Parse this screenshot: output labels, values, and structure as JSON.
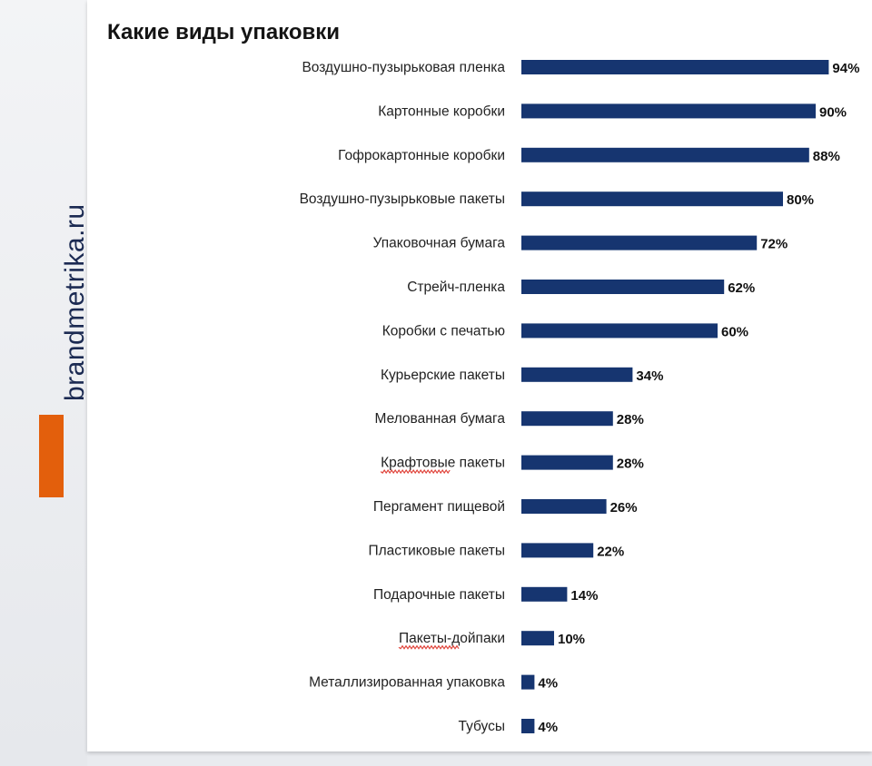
{
  "brand": {
    "text": "brandmetrika.ru",
    "accent_color": "#e35f0c"
  },
  "chart_data": {
    "type": "bar",
    "orientation": "horizontal",
    "title": "Какие виды упаковки",
    "bar_color": "#163570",
    "categories": [
      "Воздушно-пузырьковая пленка",
      "Картонные коробки",
      "Гофрокартонные коробки",
      "Воздушно-пузырьковые пакеты",
      "Упаковочная бумага",
      "Стрейч-пленка",
      "Коробки с печатью",
      "Курьерские пакеты",
      "Мелованная бумага",
      "Крафтовые пакеты",
      "Пергамент пищевой",
      "Пластиковые пакеты",
      "Подарочные пакеты",
      "Пакеты-дойпаки",
      "Металлизированная упаковка",
      "Тубусы"
    ],
    "values": [
      94,
      90,
      88,
      80,
      72,
      62,
      60,
      34,
      28,
      28,
      26,
      22,
      14,
      10,
      4,
      4
    ],
    "value_labels": [
      "94%",
      "90%",
      "88%",
      "80%",
      "72%",
      "62%",
      "60%",
      "34%",
      "28%",
      "28%",
      "26%",
      "22%",
      "14%",
      "10%",
      "4%",
      "4%"
    ],
    "xlim": [
      0,
      100
    ]
  }
}
